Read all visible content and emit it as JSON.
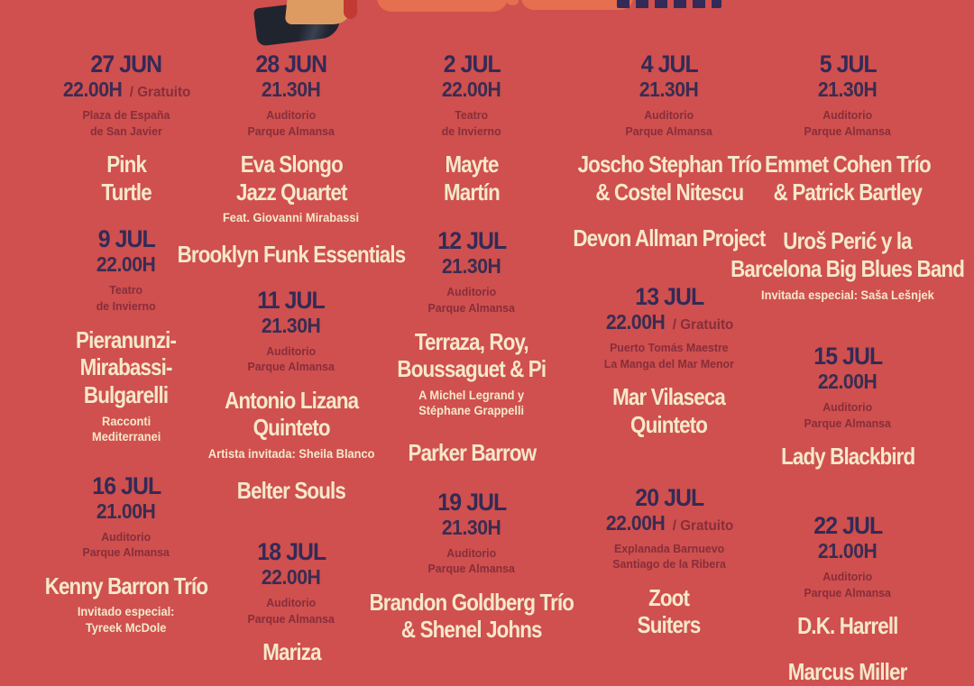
{
  "poster": {
    "colors": {
      "background": "#cf504e",
      "date_navy": "#332a57",
      "venue_maroon": "#872e3b",
      "artist_cream": "#f5e8cb",
      "decor_orange": "#e56f4e"
    },
    "decor_icons": [
      "person-figure",
      "orange-shape",
      "logo-remnant"
    ],
    "columns": [
      {
        "blocks": [
          {
            "date": "27 JUN",
            "time": "22.00H",
            "gratis": "/ Gratuito",
            "venue": "Plaza de España\nde San Javier",
            "artist": "Pink\nTurtle"
          },
          {
            "date": "9 JUL",
            "time": "22.00H",
            "venue": "Teatro\nde Invierno",
            "artist": "Pieranunzi-\nMirabassi-\nBulgarelli",
            "note": "Racconti\nMediterranei"
          },
          {
            "date": "16 JUL",
            "time": "21.00H",
            "venue": "Auditorio\nParque Almansa",
            "artist": "Kenny Barron Trío",
            "note": "Invitado especial:\nTyreek McDole"
          }
        ]
      },
      {
        "blocks": [
          {
            "date": "28 JUN",
            "time": "21.30H",
            "venue": "Auditorio\nParque Almansa",
            "artist": "Eva Slongo\nJazz Quartet",
            "note": "Feat. Giovanni Mirabassi"
          },
          {
            "artist": "Brooklyn Funk Essentials"
          },
          {
            "date": "11 JUL",
            "time": "21.30H",
            "venue": "Auditorio\nParque Almansa",
            "artist": "Antonio Lizana\nQuinteto",
            "note": "Artista invitada: Sheila Blanco"
          },
          {
            "artist": "Belter Souls"
          },
          {
            "date": "18 JUL",
            "time": "22.00H",
            "venue": "Auditorio\nParque Almansa",
            "artist": "Mariza"
          }
        ]
      },
      {
        "blocks": [
          {
            "date": "2 JUL",
            "time": "22.00H",
            "venue": "Teatro\nde Invierno",
            "artist": "Mayte\nMartín"
          },
          {
            "date": "12 JUL",
            "time": "21.30H",
            "venue": "Auditorio\nParque Almansa",
            "artist": "Terraza, Roy,\nBoussaguet & Pi",
            "note": "A Michel Legrand y\nStéphane Grappelli"
          },
          {
            "artist": "Parker Barrow"
          },
          {
            "date": "19 JUL",
            "time": "21.30H",
            "venue": "Auditorio\nParque Almansa",
            "artist": "Brandon Goldberg Trío\n& Shenel Johns"
          }
        ]
      },
      {
        "blocks": [
          {
            "date": "4 JUL",
            "time": "21.30H",
            "venue": "Auditorio\nParque Almansa",
            "artist": "Joscho Stephan Trío\n& Costel Nitescu"
          },
          {
            "artist": "Devon Allman Project"
          },
          {
            "date": "13 JUL",
            "time": "22.00H",
            "gratis": "/ Gratuito",
            "venue": "Puerto Tomás Maestre\nLa Manga del Mar Menor",
            "artist": "Mar Vilaseca\nQuinteto"
          },
          {
            "date": "20 JUL",
            "time": "22.00H",
            "gratis": "/ Gratuito",
            "venue": "Explanada Barnuevo\nSantiago de la Ribera",
            "artist": "Zoot\nSuiters"
          }
        ]
      },
      {
        "blocks": [
          {
            "date": "5 JUL",
            "time": "21.30H",
            "venue": "Auditorio\nParque Almansa",
            "artist": "Emmet Cohen Trío\n& Patrick Bartley"
          },
          {
            "artist": "Uroš Perić y la\nBarcelona Big Blues Band",
            "note": "Invitada especial: Saša Lešnjek"
          },
          {
            "date": "15 JUL",
            "time": "22.00H",
            "venue": "Auditorio\nParque Almansa",
            "artist": "Lady Blackbird"
          },
          {
            "date": "22 JUL",
            "time": "21.00H",
            "venue": "Auditorio\nParque Almansa",
            "artist": "D.K. Harrell"
          },
          {
            "artist": "Marcus Miller"
          }
        ]
      }
    ]
  }
}
